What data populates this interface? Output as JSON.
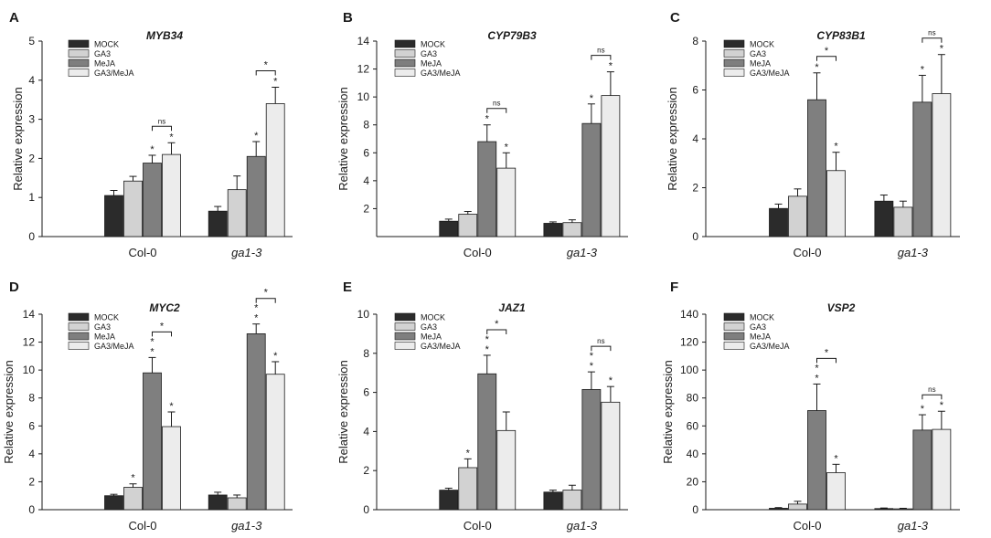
{
  "figure": {
    "series_names": [
      "MOCK",
      "GA3",
      "MeJA",
      "GA3/MeJA"
    ],
    "series_colors": [
      "#2b2b2b",
      "#d2d2d2",
      "#7f7f7f",
      "#ececec"
    ],
    "ylabel": "Relative expression",
    "categories": [
      "Col-0",
      "ga1-3"
    ],
    "italic_categories": [
      "ga1-3"
    ]
  },
  "chart_data": [
    {
      "type": "bar",
      "letter": "A",
      "title": "MYB34",
      "ylabel": "Relative expression",
      "ylim": [
        0,
        5
      ],
      "yticks": [
        0,
        1,
        2,
        3,
        4,
        5
      ],
      "categories": [
        "Col-0",
        "ga1-3"
      ],
      "series": [
        {
          "name": "MOCK",
          "values": [
            1.05,
            0.65
          ],
          "errors": [
            0.13,
            0.12
          ]
        },
        {
          "name": "GA3",
          "values": [
            1.42,
            1.2
          ],
          "errors": [
            0.12,
            0.35
          ]
        },
        {
          "name": "MeJA",
          "values": [
            1.88,
            2.05
          ],
          "errors": [
            0.2,
            0.38
          ]
        },
        {
          "name": "GA3/MeJA",
          "values": [
            2.1,
            3.4
          ],
          "errors": [
            0.3,
            0.42
          ]
        }
      ],
      "bar_marks": [
        [
          "",
          ""
        ],
        [
          "",
          ""
        ],
        [
          "*",
          "*"
        ],
        [
          "*",
          "*"
        ]
      ],
      "brackets": [
        {
          "label": "ns",
          "cat": 0
        },
        {
          "label": "*",
          "cat": 1
        }
      ]
    },
    {
      "type": "bar",
      "letter": "B",
      "title": "CYP79B3",
      "ylabel": "Relative expression",
      "ylim": [
        0,
        14
      ],
      "yticks": [
        2,
        4,
        6,
        8,
        10,
        12,
        14
      ],
      "categories": [
        "Col-0",
        "ga1-3"
      ],
      "series": [
        {
          "name": "MOCK",
          "values": [
            1.1,
            0.95
          ],
          "errors": [
            0.15,
            0.1
          ]
        },
        {
          "name": "GA3",
          "values": [
            1.6,
            1.0
          ],
          "errors": [
            0.2,
            0.2
          ]
        },
        {
          "name": "MeJA",
          "values": [
            6.8,
            8.1
          ],
          "errors": [
            1.2,
            1.4
          ]
        },
        {
          "name": "GA3/MeJA",
          "values": [
            4.9,
            10.1
          ],
          "errors": [
            1.1,
            1.7
          ]
        }
      ],
      "bar_marks": [
        [
          "",
          ""
        ],
        [
          "",
          ""
        ],
        [
          "*",
          "*"
        ],
        [
          "*",
          "*"
        ]
      ],
      "brackets": [
        {
          "label": "ns",
          "cat": 0
        },
        {
          "label": "ns",
          "cat": 1
        }
      ]
    },
    {
      "type": "bar",
      "letter": "C",
      "title": "CYP83B1",
      "ylabel": "Relative expression",
      "ylim": [
        0,
        8
      ],
      "yticks": [
        0,
        2,
        4,
        6,
        8
      ],
      "categories": [
        "Col-0",
        "ga1-3"
      ],
      "series": [
        {
          "name": "MOCK",
          "values": [
            1.15,
            1.45
          ],
          "errors": [
            0.18,
            0.25
          ]
        },
        {
          "name": "GA3",
          "values": [
            1.65,
            1.2
          ],
          "errors": [
            0.3,
            0.25
          ]
        },
        {
          "name": "MeJA",
          "values": [
            5.6,
            5.5
          ],
          "errors": [
            1.1,
            1.1
          ]
        },
        {
          "name": "GA3/MeJA",
          "values": [
            2.7,
            5.85
          ],
          "errors": [
            0.75,
            1.6
          ]
        }
      ],
      "bar_marks": [
        [
          "",
          ""
        ],
        [
          "",
          ""
        ],
        [
          "*",
          "*"
        ],
        [
          "*",
          "*"
        ]
      ],
      "brackets": [
        {
          "label": "*",
          "cat": 0
        },
        {
          "label": "ns",
          "cat": 1
        }
      ]
    },
    {
      "type": "bar",
      "letter": "D",
      "title": "MYC2",
      "ylabel": "Relative expression",
      "ylim": [
        0,
        14
      ],
      "yticks": [
        0,
        2,
        4,
        6,
        8,
        10,
        12,
        14
      ],
      "categories": [
        "Col-0",
        "ga1-3"
      ],
      "series": [
        {
          "name": "MOCK",
          "values": [
            1.0,
            1.05
          ],
          "errors": [
            0.1,
            0.2
          ]
        },
        {
          "name": "GA3",
          "values": [
            1.6,
            0.85
          ],
          "errors": [
            0.25,
            0.2
          ]
        },
        {
          "name": "MeJA",
          "values": [
            9.8,
            12.6
          ],
          "errors": [
            1.1,
            0.7
          ]
        },
        {
          "name": "GA3/MeJA",
          "values": [
            5.95,
            9.7
          ],
          "errors": [
            1.05,
            0.9
          ]
        }
      ],
      "bar_marks": [
        [
          "",
          ""
        ],
        [
          "*",
          ""
        ],
        [
          "**",
          "**"
        ],
        [
          "*",
          "*"
        ]
      ],
      "brackets": [
        {
          "label": "*",
          "cat": 0
        },
        {
          "label": "*",
          "cat": 1
        }
      ]
    },
    {
      "type": "bar",
      "letter": "E",
      "title": "JAZ1",
      "ylabel": "Relative expression",
      "ylim": [
        0,
        10
      ],
      "yticks": [
        0,
        2,
        4,
        6,
        8,
        10
      ],
      "categories": [
        "Col-0",
        "ga1-3"
      ],
      "series": [
        {
          "name": "MOCK",
          "values": [
            1.0,
            0.9
          ],
          "errors": [
            0.1,
            0.1
          ]
        },
        {
          "name": "GA3",
          "values": [
            2.15,
            1.0
          ],
          "errors": [
            0.45,
            0.25
          ]
        },
        {
          "name": "MeJA",
          "values": [
            6.95,
            6.15
          ],
          "errors": [
            0.95,
            0.9
          ]
        },
        {
          "name": "GA3/MeJA",
          "values": [
            4.05,
            5.5
          ],
          "errors": [
            0.95,
            0.8
          ]
        }
      ],
      "bar_marks": [
        [
          "",
          ""
        ],
        [
          "*",
          ""
        ],
        [
          "**",
          "**"
        ],
        [
          "",
          "*"
        ]
      ],
      "brackets": [
        {
          "label": "*",
          "cat": 0
        },
        {
          "label": "ns",
          "cat": 1
        }
      ]
    },
    {
      "type": "bar",
      "letter": "F",
      "title": "VSP2",
      "ylabel": "Relative expression",
      "ylim": [
        0,
        140
      ],
      "yticks": [
        0,
        20,
        40,
        60,
        80,
        100,
        120,
        140
      ],
      "categories": [
        "Col-0",
        "ga1-3"
      ],
      "series": [
        {
          "name": "MOCK",
          "values": [
            1.0,
            0.8
          ],
          "errors": [
            0.5,
            0.4
          ]
        },
        {
          "name": "GA3",
          "values": [
            4.0,
            0.6
          ],
          "errors": [
            2.0,
            0.4
          ]
        },
        {
          "name": "MeJA",
          "values": [
            71.0,
            57.0
          ],
          "errors": [
            19.0,
            11.0
          ]
        },
        {
          "name": "GA3/MeJA",
          "values": [
            26.5,
            57.5
          ],
          "errors": [
            6.0,
            13.0
          ]
        }
      ],
      "bar_marks": [
        [
          "",
          ""
        ],
        [
          "",
          ""
        ],
        [
          "**",
          "*"
        ],
        [
          "*",
          "*"
        ]
      ],
      "brackets": [
        {
          "label": "*",
          "cat": 0
        },
        {
          "label": "ns",
          "cat": 1
        }
      ]
    }
  ]
}
